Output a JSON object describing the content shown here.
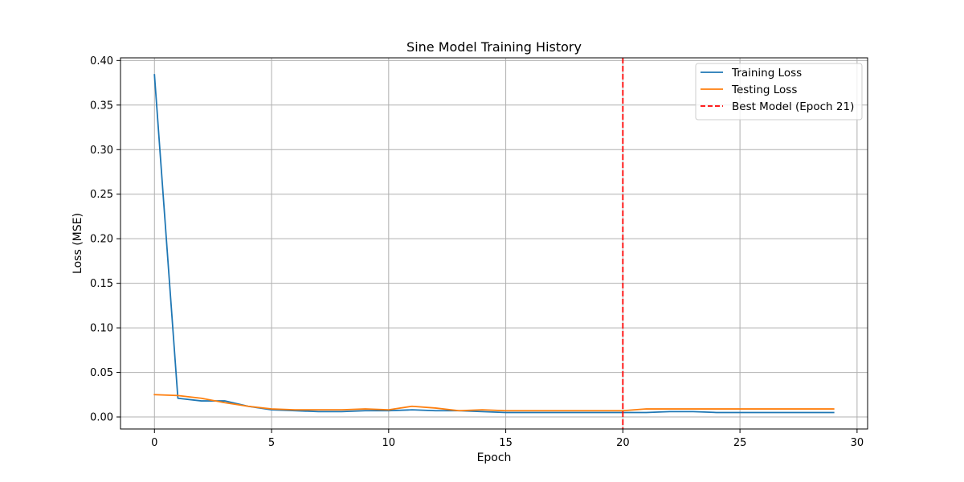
{
  "chart_data": {
    "type": "line",
    "title": "Sine Model Training History",
    "xlabel": "Epoch",
    "ylabel": "Loss (MSE)",
    "xlim": [
      -1.45,
      30.45
    ],
    "ylim": [
      -0.0135,
      0.403
    ],
    "xticks": [
      0,
      5,
      10,
      15,
      20,
      25,
      30
    ],
    "xtick_labels": [
      "0",
      "5",
      "10",
      "15",
      "20",
      "25",
      "30"
    ],
    "yticks": [
      0.0,
      0.05,
      0.1,
      0.15,
      0.2,
      0.25,
      0.3,
      0.35,
      0.4
    ],
    "ytick_labels": [
      "0.00",
      "0.05",
      "0.10",
      "0.15",
      "0.20",
      "0.25",
      "0.30",
      "0.35",
      "0.40"
    ],
    "grid": true,
    "legend_position": "upper right",
    "x": [
      0,
      1,
      2,
      3,
      4,
      5,
      6,
      7,
      8,
      9,
      10,
      11,
      12,
      13,
      14,
      15,
      16,
      17,
      18,
      19,
      20,
      21,
      22,
      23,
      24,
      25,
      26,
      27,
      28,
      29
    ],
    "series": [
      {
        "name": "Training Loss",
        "color": "#1f77b4",
        "values": [
          0.384,
          0.021,
          0.018,
          0.018,
          0.012,
          0.008,
          0.007,
          0.006,
          0.006,
          0.007,
          0.007,
          0.008,
          0.007,
          0.007,
          0.006,
          0.005,
          0.005,
          0.005,
          0.005,
          0.005,
          0.005,
          0.005,
          0.006,
          0.006,
          0.005,
          0.005,
          0.005,
          0.005,
          0.005,
          0.005
        ]
      },
      {
        "name": "Testing Loss",
        "color": "#ff7f0e",
        "values": [
          0.025,
          0.024,
          0.021,
          0.016,
          0.012,
          0.009,
          0.008,
          0.008,
          0.008,
          0.009,
          0.008,
          0.012,
          0.01,
          0.007,
          0.008,
          0.007,
          0.007,
          0.007,
          0.007,
          0.007,
          0.007,
          0.009,
          0.009,
          0.009,
          0.009,
          0.009,
          0.009,
          0.009,
          0.009,
          0.009
        ]
      }
    ],
    "vline": {
      "name": "Best Model (Epoch 21)",
      "x": 20,
      "color": "#ff0000",
      "style": "dashed"
    }
  }
}
